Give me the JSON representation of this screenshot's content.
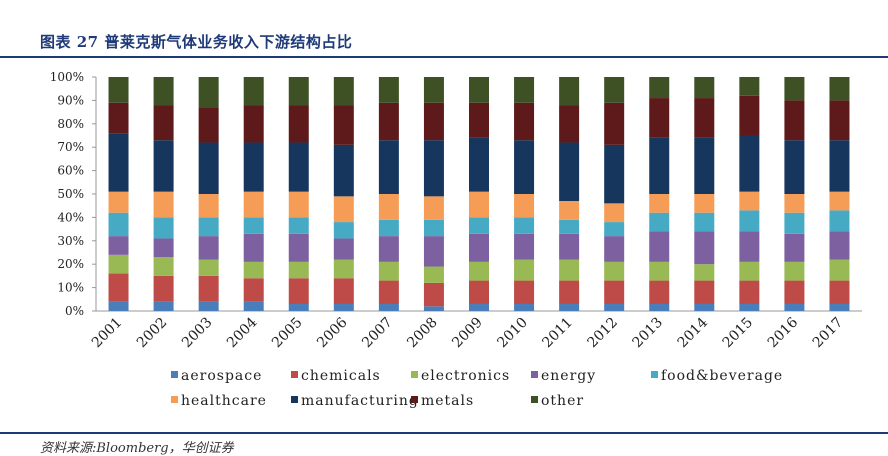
{
  "header": {
    "title": "图表 27   普莱克斯气体业务收入下游结构占比"
  },
  "footer": {
    "source": "资料来源:Bloomberg，华创证券"
  },
  "chart_data": {
    "type": "bar",
    "stacked": true,
    "percent": true,
    "categories": [
      "2001",
      "2002",
      "2003",
      "2004",
      "2005",
      "2006",
      "2007",
      "2008",
      "2009",
      "2010",
      "2011",
      "2012",
      "2013",
      "2014",
      "2015",
      "2016",
      "2017"
    ],
    "y_ticks": [
      "0%",
      "10%",
      "20%",
      "30%",
      "40%",
      "50%",
      "60%",
      "70%",
      "80%",
      "90%",
      "100%"
    ],
    "ylim": [
      0,
      100
    ],
    "legend_position": "bottom",
    "series": [
      {
        "name": "aerospace",
        "color": "#4a7ebb",
        "values": [
          4,
          4,
          4,
          4,
          3,
          3,
          3,
          2,
          3,
          3,
          3,
          3,
          3,
          3,
          3,
          3,
          3
        ]
      },
      {
        "name": "chemicals",
        "color": "#be4b48",
        "values": [
          12,
          11,
          11,
          10,
          11,
          11,
          10,
          10,
          10,
          10,
          10,
          10,
          10,
          10,
          10,
          10,
          10
        ]
      },
      {
        "name": "electronics",
        "color": "#98b954",
        "values": [
          8,
          8,
          7,
          7,
          7,
          8,
          8,
          7,
          8,
          9,
          9,
          8,
          8,
          7,
          8,
          8,
          9
        ]
      },
      {
        "name": "energy",
        "color": "#7d60a0",
        "values": [
          8,
          8,
          10,
          12,
          12,
          9,
          11,
          13,
          12,
          11,
          11,
          11,
          13,
          14,
          13,
          12,
          12
        ]
      },
      {
        "name": "food&beverage",
        "color": "#46aac5",
        "values": [
          10,
          9,
          8,
          7,
          7,
          7,
          7,
          7,
          7,
          7,
          6,
          6,
          8,
          8,
          9,
          9,
          9
        ]
      },
      {
        "name": "healthcare",
        "color": "#f59d56",
        "values": [
          9,
          11,
          10,
          11,
          11,
          11,
          11,
          10,
          11,
          10,
          8,
          8,
          8,
          8,
          8,
          8,
          8
        ]
      },
      {
        "name": "manufacturing",
        "color": "#17365d",
        "values": [
          25,
          22,
          22,
          21,
          21,
          22,
          23,
          24,
          23,
          23,
          25,
          25,
          24,
          24,
          24,
          23,
          22
        ]
      },
      {
        "name": "metals",
        "color": "#5e1a1a",
        "values": [
          13,
          15,
          15,
          16,
          16,
          17,
          16,
          16,
          15,
          16,
          16,
          18,
          17,
          17,
          17,
          17,
          17
        ]
      },
      {
        "name": "other",
        "color": "#3d5124",
        "values": [
          11,
          12,
          13,
          12,
          12,
          12,
          11,
          11,
          11,
          11,
          12,
          11,
          9,
          9,
          8,
          10,
          10
        ]
      }
    ]
  }
}
